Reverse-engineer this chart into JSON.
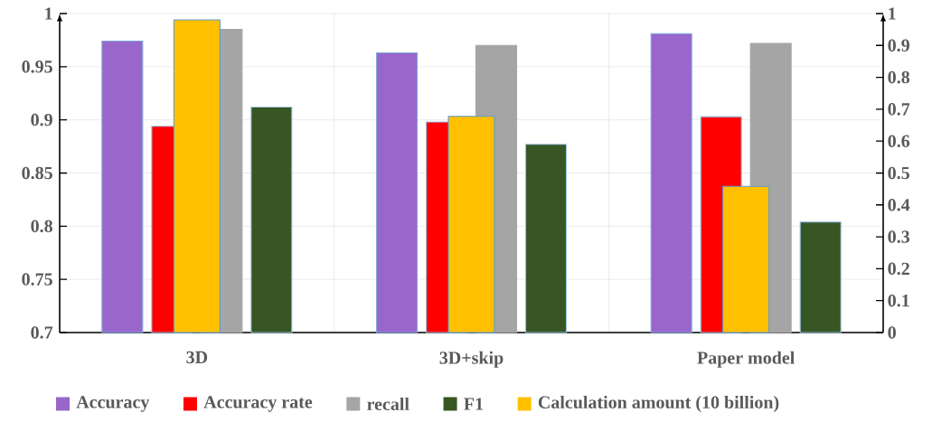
{
  "chart_data": {
    "type": "bar",
    "categories": [
      "3D",
      "3D+skip",
      "Paper model"
    ],
    "series": [
      {
        "name": "Accuracy",
        "color": "#9966cc",
        "values": [
          0.974,
          0.963,
          0.981
        ]
      },
      {
        "name": "Accuracy rate",
        "color": "#ff0000",
        "values": [
          0.894,
          0.898,
          0.903
        ]
      },
      {
        "name": "recall",
        "color": "#a5a5a5",
        "values": [
          0.985,
          0.97,
          0.972
        ]
      },
      {
        "name": "F1",
        "color": "#375623",
        "values": [
          0.912,
          0.877,
          0.804
        ]
      },
      {
        "name": "Calculation amount (10 billion)",
        "color": "#ffc000",
        "axis": "y2",
        "values": [
          0.98,
          0.678,
          0.458
        ]
      }
    ],
    "ylim": [
      0.7,
      1
    ],
    "yticks": [
      0.7,
      0.75,
      0.8,
      0.85,
      0.9,
      0.95,
      1
    ],
    "y2lim": [
      0,
      1
    ],
    "y2ticks": [
      0,
      0.1,
      0.2,
      0.3,
      0.4,
      0.5,
      0.6,
      0.7,
      0.8,
      0.9,
      1
    ],
    "grid": true,
    "legend": "bottom"
  }
}
